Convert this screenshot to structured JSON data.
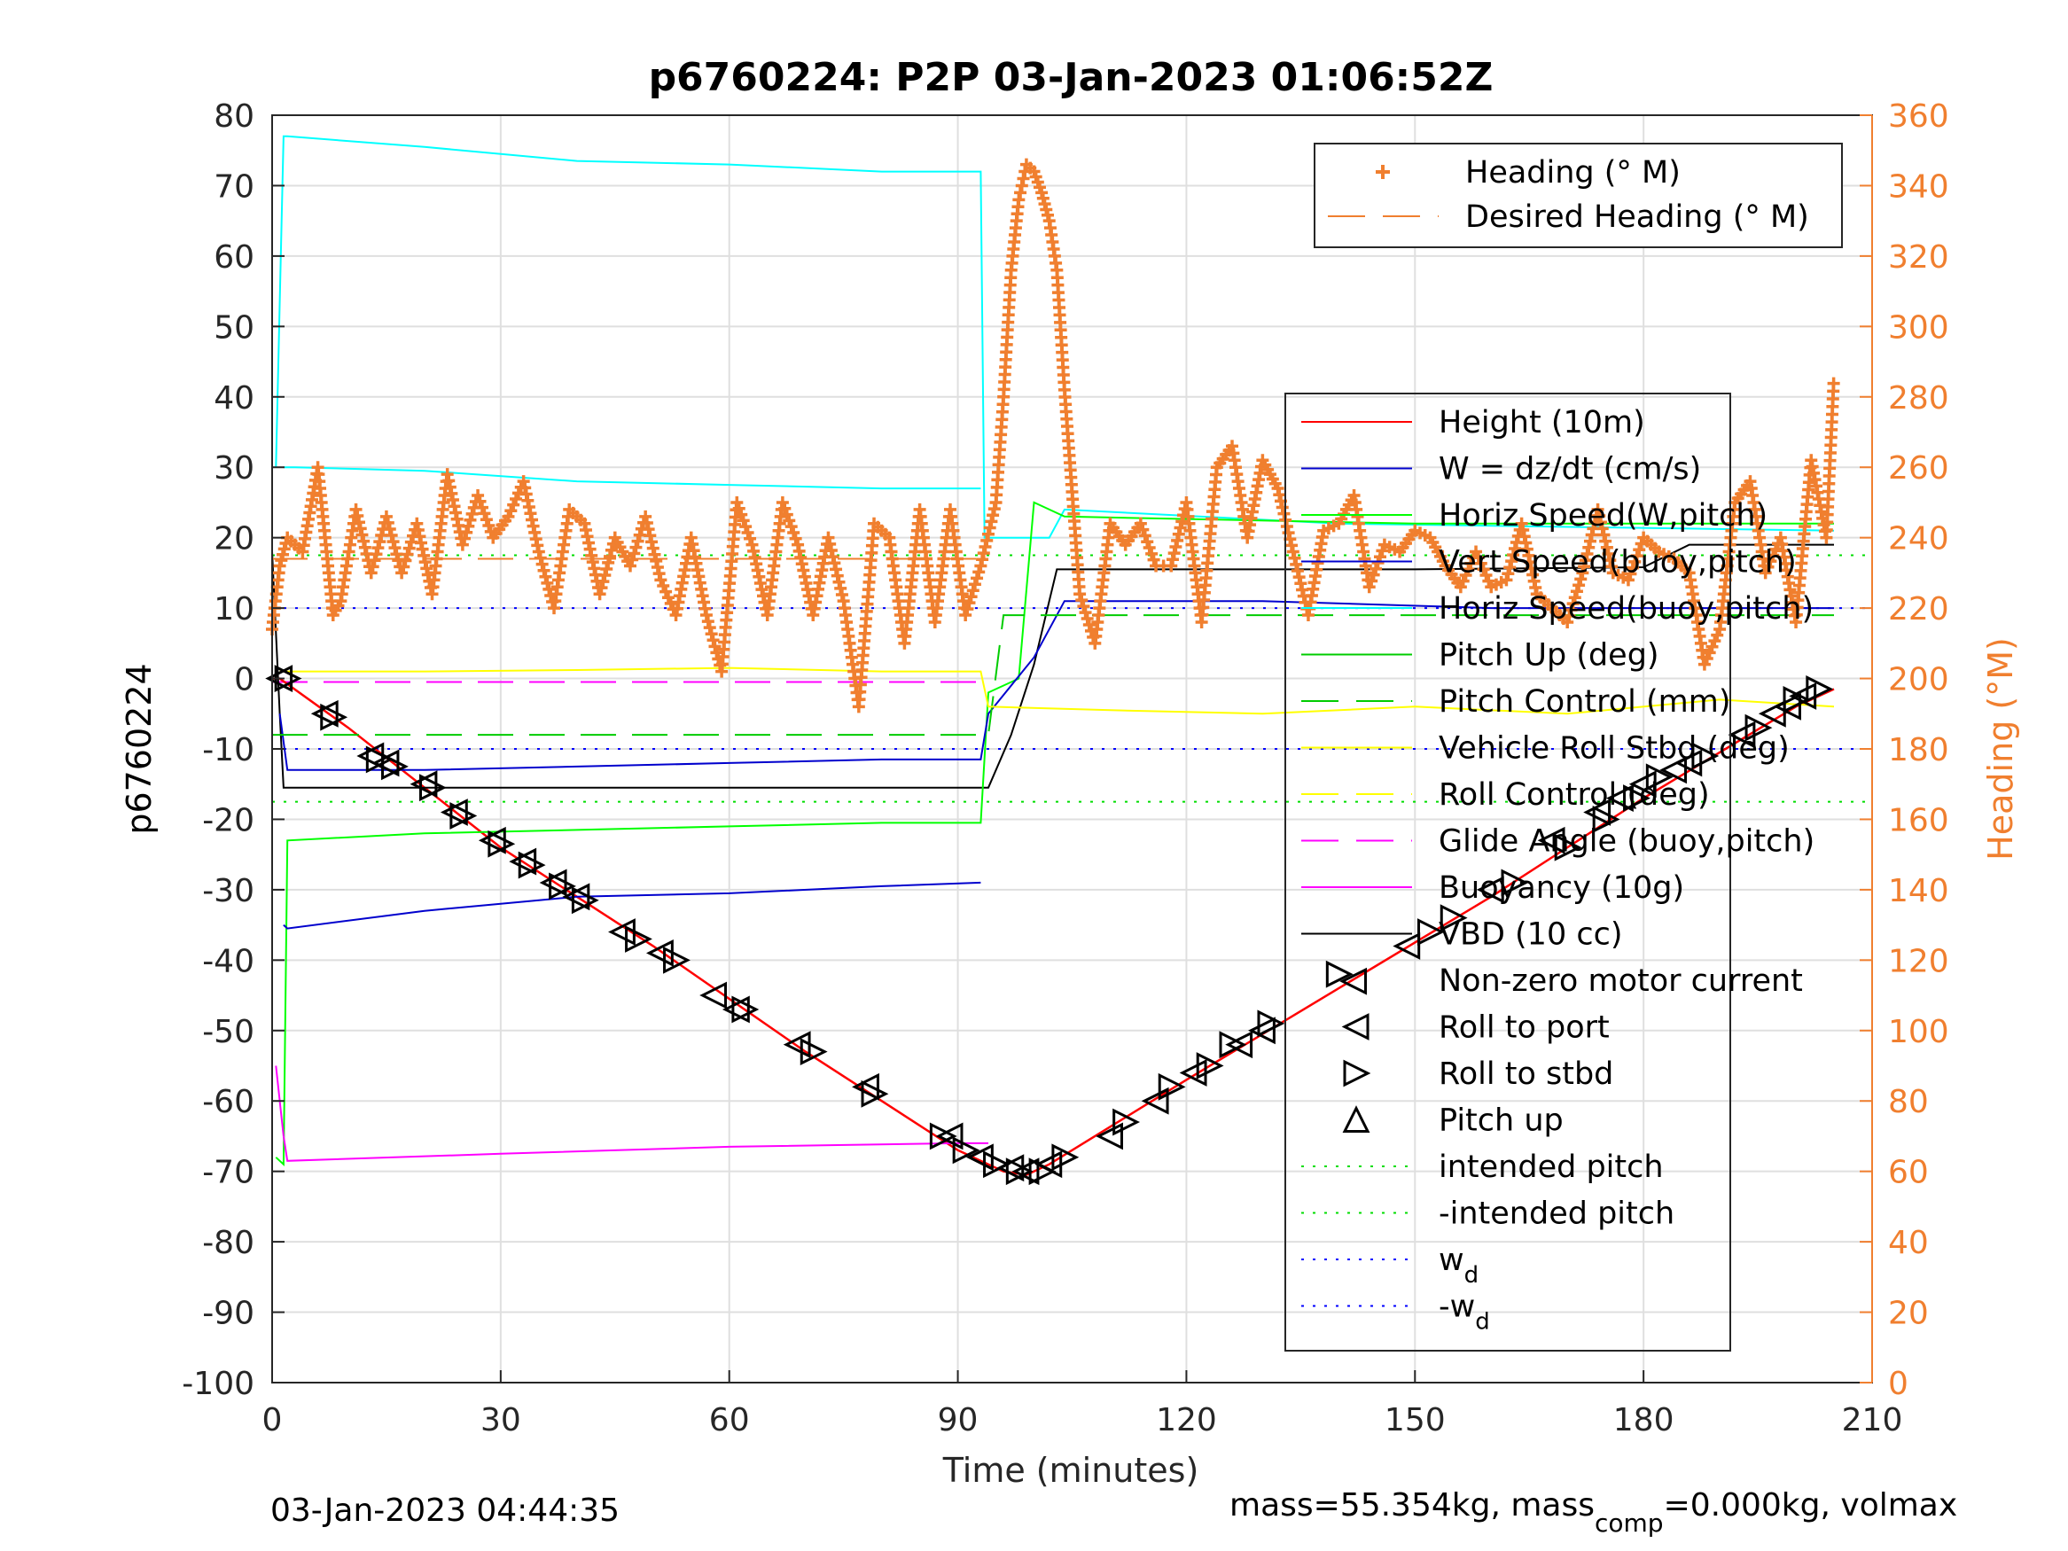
{
  "chart_data": {
    "type": "line",
    "title": "p6760224: P2P 03-Jan-2023 01:06:52Z",
    "xlabel": "Time (minutes)",
    "ylabel": "p6760224",
    "y2label": "Heading (°M)",
    "xlim": [
      0,
      210
    ],
    "ylim": [
      -100,
      80
    ],
    "y2lim": [
      0,
      360
    ],
    "xticks": [
      0,
      30,
      60,
      90,
      120,
      150,
      180,
      210
    ],
    "yticks": [
      80,
      70,
      60,
      50,
      40,
      30,
      20,
      10,
      0,
      -10,
      -20,
      -30,
      -40,
      -50,
      -60,
      -70,
      -80,
      -90,
      -100
    ],
    "y2ticks": [
      360,
      340,
      320,
      300,
      280,
      260,
      240,
      220,
      200,
      180,
      160,
      140,
      120,
      100,
      80,
      60,
      40,
      20,
      0
    ],
    "grid": true,
    "footer_left": "03-Jan-2023 04:44:35",
    "footer_right": {
      "pre": "mass=55.354kg, mass",
      "sub": "comp",
      "post": "=0.000kg, volmax"
    },
    "colors": {
      "heading": "#f07f2f",
      "height": "#ff0000",
      "w": "#0000cd",
      "horiz": "#00ff00",
      "vert": "#00ffff",
      "roll": "#ffff00",
      "buoy": "#ff00ff",
      "vbd": "#000000"
    },
    "legend_heading": {
      "placement": "top-right",
      "entries": [
        {
          "label": "Heading (° M)",
          "color": "#f07f2f",
          "style": "plus"
        },
        {
          "label": "Desired Heading (° M)",
          "color": "#f07f2f",
          "style": "dash"
        }
      ]
    },
    "legend_main": {
      "placement": "right",
      "entries": [
        {
          "label": "Height (10m)",
          "color": "#ff0000",
          "style": "solid"
        },
        {
          "label": "W = dz/dt (cm/s)",
          "color": "#0000cd",
          "style": "solid"
        },
        {
          "label": "Horiz Speed(W,pitch)",
          "color": "#00ff00",
          "style": "solid"
        },
        {
          "label": "Vert Speed(buoy,pitch)",
          "color": "#0000cd",
          "style": "solid"
        },
        {
          "label": "Horiz Speed(buoy,pitch)",
          "color": "#00ffff",
          "style": "solid"
        },
        {
          "label": "Pitch Up (deg)",
          "color": "#00cc00",
          "style": "solid"
        },
        {
          "label": "Pitch Control (mm)",
          "color": "#00cc00",
          "style": "dash"
        },
        {
          "label": "Vehicle Roll Stbd (deg)",
          "color": "#ffff00",
          "style": "solid"
        },
        {
          "label": "Roll Control (deg)",
          "color": "#ffff00",
          "style": "dash"
        },
        {
          "label": "Glide Angle (buoy,pitch)",
          "color": "#ff00ff",
          "style": "dash"
        },
        {
          "label": "Buoyancy (10g)",
          "color": "#ff00ff",
          "style": "solid"
        },
        {
          "label": "VBD (10 cc)",
          "color": "#000000",
          "style": "solid"
        },
        {
          "label": "Non-zero motor current",
          "color": "#000000",
          "style": "none"
        },
        {
          "label": "Roll to port",
          "color": "#000000",
          "style": "tri-left"
        },
        {
          "label": "Roll to stbd",
          "color": "#000000",
          "style": "tri-right"
        },
        {
          "label": "Pitch up",
          "color": "#000000",
          "style": "tri-up"
        },
        {
          "label": "intended pitch",
          "color": "#00dd00",
          "style": "dot"
        },
        {
          "label": "-intended pitch",
          "color": "#00dd00",
          "style": "dot"
        },
        {
          "label": "w",
          "sub": "d",
          "color": "#0000ff",
          "style": "dot"
        },
        {
          "label": "-w",
          "sub": "d",
          "color": "#0000ff",
          "style": "dot"
        }
      ]
    },
    "reference_lines": [
      {
        "name": "intended pitch",
        "y": 17.5,
        "color": "#00dd00"
      },
      {
        "name": "-intended pitch",
        "y": -17.5,
        "color": "#00dd00"
      },
      {
        "name": "w_d",
        "y": 10,
        "color": "#0000ff"
      },
      {
        "name": "-w_d",
        "y": -10,
        "color": "#0000ff"
      },
      {
        "name": "glide angle",
        "y": -0.5,
        "color": "#ff00ff",
        "x_end": 94
      }
    ],
    "series": [
      {
        "name": "Height (10m)",
        "axis": "left",
        "color": "#ff0000",
        "x": [
          0,
          1,
          10,
          30,
          50,
          70,
          90,
          96,
          99,
          102,
          120,
          140,
          160,
          180,
          200,
          205
        ],
        "y": [
          0,
          0,
          -7,
          -24,
          -38,
          -53,
          -67,
          -70,
          -70.5,
          -69,
          -57,
          -44,
          -31,
          -17,
          -4,
          -1.5
        ]
      },
      {
        "name": "VBD (10 cc)",
        "axis": "left",
        "color": "#000000",
        "x": [
          0,
          1,
          1.5,
          94,
          97,
          100,
          103,
          150,
          180,
          186,
          205
        ],
        "y": [
          18,
          -5,
          -15.5,
          -15.5,
          -8,
          2,
          15.5,
          15.5,
          15.8,
          19,
          19
        ]
      },
      {
        "name": "Horiz Speed(buoy,pitch)",
        "axis": "left",
        "color": "#00ffff",
        "x": [
          0.5,
          1.5,
          2,
          20,
          40,
          60,
          80,
          93,
          93.5,
          102,
          104,
          140,
          205
        ],
        "y": [
          30,
          77,
          77,
          75.5,
          73.5,
          73,
          72,
          72,
          20,
          20,
          24,
          22,
          21
        ]
      },
      {
        "name": "Horiz Speed(W,pitch)",
        "axis": "left",
        "color": "#00ffff",
        "x": [
          1.5,
          3,
          20,
          40,
          60,
          80,
          93
        ],
        "y": [
          30,
          30,
          29.5,
          28,
          27.5,
          27,
          27
        ]
      },
      {
        "name": "Pitch Up (deg)",
        "axis": "left",
        "color": "#00ff00",
        "x": [
          0.5,
          1.5,
          2,
          20,
          40,
          60,
          80,
          93,
          94,
          98,
          100,
          104,
          150,
          205
        ],
        "y": [
          -68,
          -69,
          -23,
          -22,
          -21.5,
          -21,
          -20.5,
          -20.5,
          -2,
          0,
          25,
          23,
          22,
          22
        ]
      },
      {
        "name": "W = dz/dt (cm/s)",
        "axis": "left",
        "color": "#0000cd",
        "x": [
          1,
          2,
          20,
          40,
          60,
          80,
          93,
          94,
          100,
          104,
          130,
          160,
          205
        ],
        "y": [
          -5,
          -13,
          -13,
          -12.5,
          -12,
          -11.5,
          -11.5,
          -5,
          3,
          11,
          11,
          10,
          10
        ]
      },
      {
        "name": "Vert Speed(buoy,pitch)",
        "axis": "left",
        "color": "#0000cd",
        "x": [
          1.5,
          2,
          20,
          40,
          60,
          80,
          93
        ],
        "y": [
          -35,
          -35.5,
          -33,
          -31,
          -30.5,
          -29.5,
          -29
        ]
      },
      {
        "name": "Pitch Control (mm)",
        "axis": "left",
        "color": "#00cc00",
        "x": [
          0,
          94,
          96,
          205
        ],
        "y": [
          -8,
          -8,
          9,
          9
        ]
      },
      {
        "name": "Buoyancy (10g)",
        "axis": "left",
        "color": "#ff00ff",
        "x": [
          0.5,
          1.5,
          2,
          30,
          60,
          90,
          94
        ],
        "y": [
          -55,
          -65,
          -68.5,
          -67.5,
          -66.5,
          -66,
          -66
        ]
      },
      {
        "name": "Vehicle Roll Stbd (deg)",
        "axis": "left",
        "color": "#ffff00",
        "x": [
          1,
          20,
          40,
          60,
          80,
          93,
          94,
          110,
          130,
          150,
          170,
          190,
          205
        ],
        "y": [
          1,
          1,
          1.2,
          1.5,
          1,
          1,
          -4,
          -4.5,
          -5,
          -4,
          -5,
          -3,
          -4
        ]
      },
      {
        "name": "Heading (° M)",
        "axis": "right",
        "color": "#f07f2f",
        "x": [
          0,
          1,
          2,
          4,
          6,
          8,
          9,
          11,
          13,
          15,
          17,
          19,
          21,
          23,
          25,
          27,
          29,
          31,
          33,
          35,
          37,
          39,
          41,
          43,
          45,
          47,
          49,
          51,
          53,
          55,
          57,
          59,
          61,
          63,
          65,
          67,
          69,
          71,
          73,
          75,
          77,
          79,
          81,
          83,
          85,
          87,
          89,
          91,
          93,
          95,
          96,
          97,
          98,
          99,
          100,
          101,
          102,
          103,
          104,
          106,
          108,
          110,
          112,
          114,
          116,
          118,
          120,
          122,
          124,
          126,
          128,
          130,
          132,
          134,
          136,
          138,
          140,
          142,
          144,
          146,
          148,
          150,
          152,
          154,
          156,
          158,
          160,
          162,
          164,
          166,
          168,
          170,
          172,
          174,
          176,
          178,
          180,
          182,
          184,
          186,
          188,
          190,
          192,
          194,
          196,
          198,
          200,
          202,
          204,
          205
        ],
        "y": [
          214,
          232,
          240,
          236,
          260,
          218,
          222,
          248,
          230,
          246,
          230,
          244,
          224,
          258,
          238,
          252,
          240,
          246,
          256,
          236,
          220,
          248,
          244,
          224,
          240,
          232,
          246,
          228,
          218,
          240,
          218,
          202,
          250,
          238,
          218,
          250,
          238,
          218,
          240,
          222,
          192,
          244,
          240,
          210,
          248,
          216,
          248,
          218,
          232,
          250,
          280,
          316,
          336,
          346,
          344,
          338,
          330,
          316,
          282,
          224,
          210,
          244,
          238,
          244,
          232,
          232,
          250,
          216,
          260,
          266,
          240,
          262,
          254,
          236,
          218,
          242,
          244,
          252,
          226,
          238,
          236,
          242,
          240,
          232,
          226,
          236,
          226,
          228,
          244,
          224,
          220,
          216,
          230,
          248,
          230,
          228,
          240,
          236,
          234,
          230,
          204,
          214,
          250,
          256,
          230,
          240,
          216,
          262,
          240,
          286
        ]
      },
      {
        "name": "Desired Heading (° M)",
        "axis": "right",
        "color": "#f07f2f",
        "x": [
          0,
          94
        ],
        "y": [
          234,
          234
        ]
      }
    ],
    "roll_to_port": {
      "x": [
        1,
        7,
        13,
        15,
        20,
        24,
        29,
        33,
        37,
        40,
        46,
        51,
        58,
        61,
        69,
        78,
        89,
        93,
        97,
        99,
        102,
        110,
        116,
        121,
        127,
        130,
        142,
        149,
        160,
        168,
        174,
        177,
        180,
        184,
        186,
        193,
        197,
        199,
        201
      ],
      "y": [
        0,
        -5,
        -11,
        -12,
        -15,
        -19,
        -23,
        -26,
        -29,
        -31,
        -36,
        -39,
        -45,
        -47,
        -52,
        -58,
        -65,
        -68,
        -69.5,
        -70,
        -69,
        -65,
        -60,
        -56,
        -52,
        -50,
        -43,
        -38,
        -30,
        -23,
        -19,
        -17,
        -15,
        -13,
        -12,
        -8,
        -5,
        -4,
        -2.5
      ]
    },
    "roll_to_stbd": {
      "x": [
        2,
        8,
        14,
        16,
        21,
        25,
        30,
        34,
        38,
        41,
        48,
        53,
        62,
        71,
        79,
        88,
        91,
        95,
        98,
        101,
        104,
        112,
        118,
        123,
        126,
        131,
        140,
        152,
        155,
        163,
        170,
        175,
        179,
        182,
        188,
        195,
        200,
        203
      ],
      "y": [
        0,
        -5.5,
        -11.5,
        -12.5,
        -15.5,
        -19.5,
        -23.5,
        -26.5,
        -29.5,
        -31.5,
        -37,
        -40,
        -47,
        -53,
        -59,
        -65,
        -67,
        -69,
        -70,
        -70,
        -68,
        -63,
        -58,
        -55,
        -52,
        -49,
        -42,
        -36,
        -34,
        -29,
        -24,
        -20,
        -17,
        -14,
        -11,
        -7,
        -3,
        -1.5
      ]
    }
  }
}
